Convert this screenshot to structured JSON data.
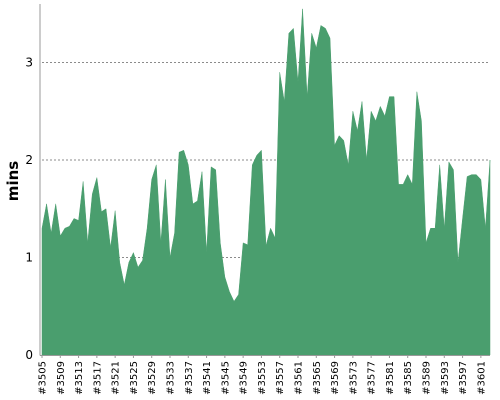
{
  "chart_data": {
    "type": "area",
    "title": "",
    "xlabel": "",
    "ylabel": "mins",
    "ylim": [
      0,
      3.6
    ],
    "yticks": [
      0,
      1,
      2,
      3
    ],
    "grid": "horizontal dashed",
    "legend": "none",
    "area_color": "#4a9e6e",
    "categories": [
      "#3505",
      "#3506",
      "#3507",
      "#3508",
      "#3509",
      "#3510",
      "#3511",
      "#3512",
      "#3513",
      "#3514",
      "#3515",
      "#3516",
      "#3517",
      "#3518",
      "#3519",
      "#3520",
      "#3521",
      "#3522",
      "#3523",
      "#3524",
      "#3525",
      "#3526",
      "#3527",
      "#3528",
      "#3529",
      "#3530",
      "#3531",
      "#3532",
      "#3533",
      "#3534",
      "#3535",
      "#3536",
      "#3537",
      "#3538",
      "#3539",
      "#3540",
      "#3541",
      "#3542",
      "#3543",
      "#3544",
      "#3545",
      "#3546",
      "#3547",
      "#3548",
      "#3549",
      "#3550",
      "#3551",
      "#3552",
      "#3553",
      "#3554",
      "#3555",
      "#3556",
      "#3557",
      "#3558",
      "#3559",
      "#3560",
      "#3561",
      "#3562",
      "#3563",
      "#3564",
      "#3565",
      "#3566",
      "#3567",
      "#3568",
      "#3569",
      "#3570",
      "#3571",
      "#3572",
      "#3573",
      "#3574",
      "#3575",
      "#3576",
      "#3577",
      "#3578",
      "#3579",
      "#3580",
      "#3581",
      "#3582",
      "#3583",
      "#3584",
      "#3585",
      "#3586",
      "#3587",
      "#3588",
      "#3589",
      "#3590",
      "#3591",
      "#3592",
      "#3593",
      "#3594",
      "#3595",
      "#3596",
      "#3597",
      "#3598",
      "#3599",
      "#3600",
      "#3601",
      "#3602",
      "#3603"
    ],
    "tick_labels": [
      "#3505",
      "#3509",
      "#3513",
      "#3517",
      "#3521",
      "#3525",
      "#3529",
      "#3533",
      "#3537",
      "#3541",
      "#3545",
      "#3549",
      "#3553",
      "#3557",
      "#3561",
      "#3565",
      "#3569",
      "#3573",
      "#3577",
      "#3581",
      "#3585",
      "#3589",
      "#3593",
      "#3597",
      "#3601"
    ],
    "values": [
      1.3,
      1.55,
      1.25,
      1.55,
      1.22,
      1.3,
      1.32,
      1.4,
      1.38,
      1.78,
      1.15,
      1.65,
      1.82,
      1.47,
      1.5,
      1.1,
      1.48,
      0.95,
      0.72,
      0.95,
      1.05,
      0.9,
      0.97,
      1.3,
      1.8,
      1.95,
      1.15,
      1.8,
      1.0,
      1.25,
      2.08,
      2.1,
      1.95,
      1.55,
      1.58,
      1.88,
      1.05,
      1.93,
      1.9,
      1.15,
      0.8,
      0.65,
      0.55,
      0.62,
      1.15,
      1.13,
      1.95,
      2.05,
      2.1,
      1.12,
      1.3,
      1.2,
      2.9,
      2.6,
      3.3,
      3.35,
      2.8,
      3.55,
      2.65,
      3.3,
      3.15,
      3.38,
      3.35,
      3.25,
      2.15,
      2.25,
      2.2,
      1.95,
      2.5,
      2.3,
      2.6,
      2.0,
      2.5,
      2.4,
      2.55,
      2.45,
      2.65,
      2.65,
      1.75,
      1.75,
      1.85,
      1.75,
      2.7,
      2.4,
      1.15,
      1.3,
      1.3,
      1.95,
      1.3,
      1.98,
      1.9,
      0.95,
      1.4,
      1.83,
      1.85,
      1.85,
      1.8,
      1.3,
      2.0
    ]
  }
}
